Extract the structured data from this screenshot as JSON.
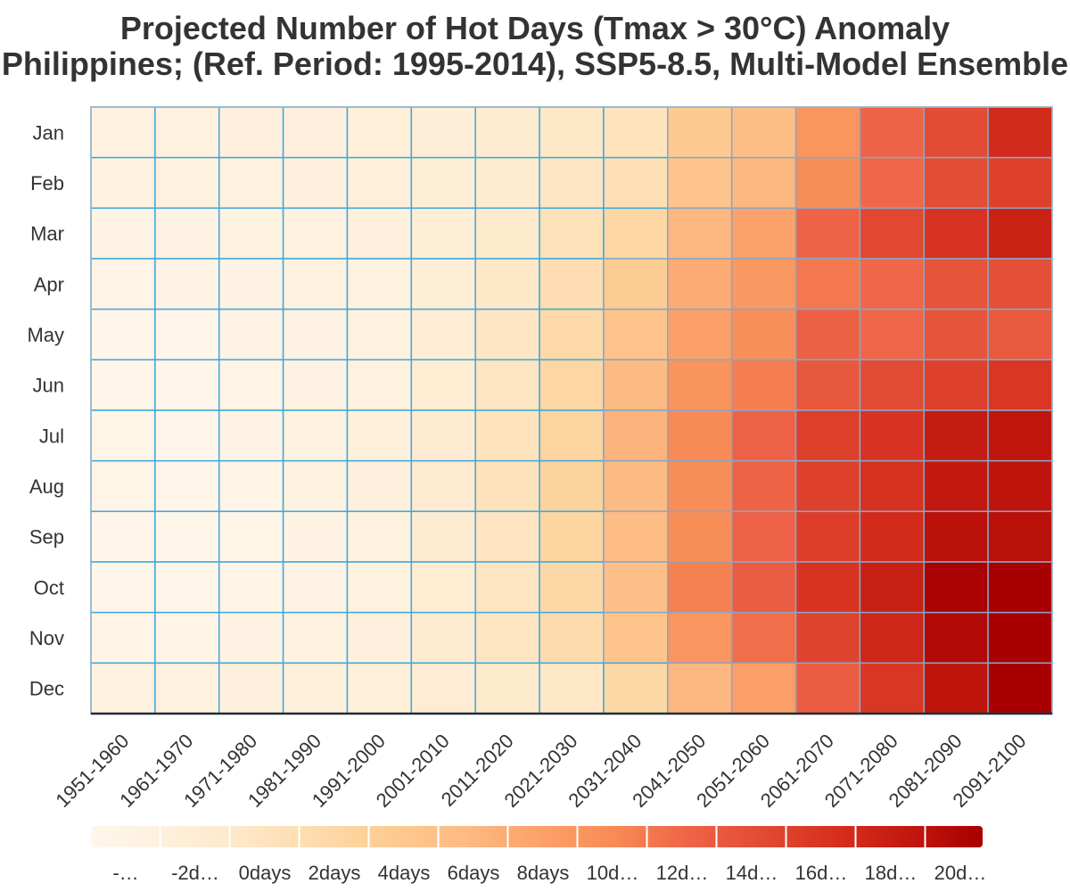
{
  "chart_data": {
    "type": "heatmap",
    "title": "Projected Number of Hot Days (Tmax > 30°C) Anomaly",
    "subtitle": "Philippines; (Ref. Period: 1995-2014), SSP5-8.5, Multi-Model Ensemble",
    "x_categories": [
      "1951-1960",
      "1961-1970",
      "1971-1980",
      "1981-1990",
      "1991-2000",
      "2001-2010",
      "2011-2020",
      "2021-2030",
      "2031-2040",
      "2041-2050",
      "2051-2060",
      "2061-2070",
      "2071-2080",
      "2081-2090",
      "2091-2100"
    ],
    "y_categories": [
      "Jan",
      "Feb",
      "Mar",
      "Apr",
      "May",
      "Jun",
      "Jul",
      "Aug",
      "Sep",
      "Oct",
      "Nov",
      "Dec"
    ],
    "values": [
      [
        -2.2,
        -2.0,
        -1.9,
        -1.8,
        -1.5,
        -1.3,
        -0.8,
        0.3,
        1.2,
        4.8,
        6.5,
        10.3,
        13.5,
        15.5,
        18.2
      ],
      [
        -2.4,
        -2.1,
        -2.0,
        -1.8,
        -1.6,
        -1.2,
        -0.5,
        0.6,
        1.8,
        5.5,
        7.2,
        11.0,
        13.2,
        15.4,
        16.4
      ],
      [
        -2.9,
        -2.6,
        -2.4,
        -2.2,
        -1.8,
        -1.2,
        -0.1,
        1.5,
        3.2,
        7.2,
        9.0,
        13.5,
        15.8,
        17.4,
        19.0
      ],
      [
        -3.2,
        -2.9,
        -2.6,
        -2.3,
        -2.0,
        -1.2,
        0.4,
        2.2,
        4.6,
        8.2,
        10.0,
        12.3,
        13.3,
        14.8,
        15.2
      ],
      [
        -3.4,
        -3.4,
        -2.9,
        -2.6,
        -2.0,
        -1.0,
        0.6,
        2.8,
        5.8,
        9.2,
        10.8,
        13.8,
        13.3,
        14.8,
        14.4
      ],
      [
        -3.4,
        -3.6,
        -3.1,
        -2.7,
        -2.0,
        -0.9,
        0.8,
        3.2,
        6.8,
        10.4,
        12.0,
        14.5,
        15.6,
        16.4,
        17.2
      ],
      [
        -3.3,
        -3.4,
        -2.9,
        -2.4,
        -1.7,
        -0.6,
        1.2,
        3.5,
        7.5,
        11.2,
        13.6,
        16.4,
        17.4,
        19.5,
        20.0
      ],
      [
        -3.3,
        -3.5,
        -3.0,
        -2.5,
        -1.8,
        -0.6,
        1.3,
        3.7,
        6.8,
        11.0,
        13.5,
        16.4,
        17.6,
        19.8,
        20.2
      ],
      [
        -3.5,
        -3.7,
        -3.3,
        -2.8,
        -2.0,
        -0.8,
        1.0,
        3.4,
        6.6,
        11.0,
        13.6,
        16.6,
        18.2,
        20.5,
        20.6
      ],
      [
        -3.4,
        -3.7,
        -3.2,
        -2.9,
        -2.1,
        -0.9,
        0.8,
        3.0,
        6.2,
        11.8,
        14.0,
        17.5,
        19.2,
        21.8,
        22.8
      ],
      [
        -3.0,
        -3.1,
        -2.8,
        -2.5,
        -1.9,
        -0.8,
        0.8,
        2.5,
        5.6,
        10.2,
        12.8,
        16.2,
        18.6,
        21.2,
        22.9
      ],
      [
        -2.3,
        -2.1,
        -1.9,
        -1.7,
        -1.5,
        -1.0,
        -0.2,
        0.4,
        3.0,
        7.2,
        9.4,
        14.0,
        17.2,
        20.2,
        22.4
      ]
    ],
    "colorbar": {
      "ticks": [
        "-…",
        "-2d…",
        "0days",
        "2days",
        "4days",
        "6days",
        "8days",
        "10d…",
        "12d…",
        "14d…",
        "16d…",
        "18d…",
        "20d…"
      ],
      "range": [
        -4,
        22
      ],
      "colors": [
        "#fff7ec",
        "#fef0dc",
        "#fee8c8",
        "#fddbad",
        "#fdcc91",
        "#fdbb84",
        "#fca26b",
        "#f88c55",
        "#ef6548",
        "#e24c34",
        "#d7301f",
        "#c2180f",
        "#a80000"
      ]
    },
    "cmap": "OrRd",
    "grid": true,
    "legend_position": "bottom"
  }
}
